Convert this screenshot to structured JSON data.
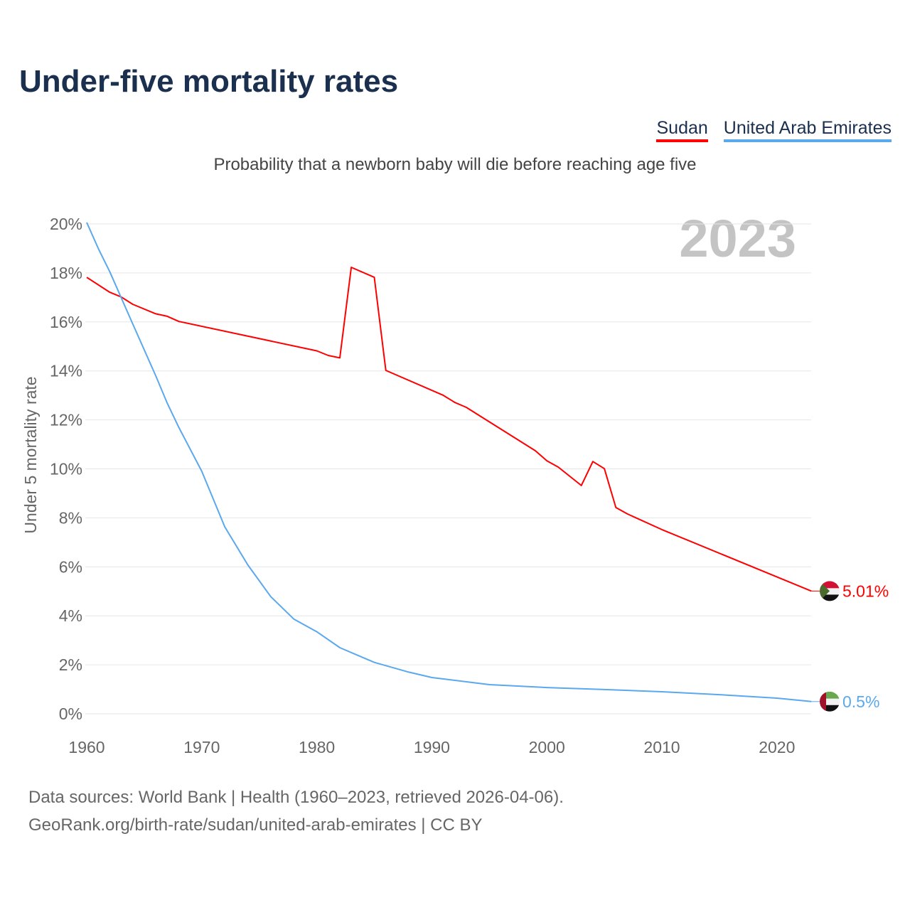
{
  "title": "Under-five mortality rates",
  "subtitle": "Probability that a newborn baby will die before reaching age five",
  "legend": [
    {
      "label": "Sudan",
      "color": "#ff0000"
    },
    {
      "label": "United Arab Emirates",
      "color": "#5aa8ee"
    }
  ],
  "footer": {
    "line1": "Data sources: World Bank | Health (1960–2023, retrieved 2026-04-06).",
    "line2": "GeoRank.org/birth-rate/sudan/united-arab-emirates | CC BY"
  },
  "chart_data": {
    "type": "line",
    "title": "Under-five mortality rates",
    "year_label": "2023",
    "ylabel": "Under 5 mortality rate",
    "xlabel": "",
    "xlim": [
      1960,
      2023
    ],
    "ylim": [
      0,
      20
    ],
    "x_ticks": [
      "1960",
      "1970",
      "1980",
      "1990",
      "2000",
      "2010",
      "2020"
    ],
    "y_ticks": [
      "0%",
      "2%",
      "4%",
      "6%",
      "8%",
      "10%",
      "12%",
      "14%",
      "16%",
      "18%",
      "20%"
    ],
    "grid": true,
    "legend_position": "top-right",
    "series": [
      {
        "name": "Sudan",
        "color": "#ff0000",
        "end_label": "5.01%",
        "icon": "sudan-flag-icon",
        "points": [
          [
            1960,
            17.82
          ],
          [
            1962,
            17.21
          ],
          [
            1963,
            17.02
          ],
          [
            1964,
            16.72
          ],
          [
            1966,
            16.33
          ],
          [
            1967,
            16.23
          ],
          [
            1968,
            16.02
          ],
          [
            1980,
            14.82
          ],
          [
            1981,
            14.63
          ],
          [
            1982,
            14.53
          ],
          [
            1983,
            18.23
          ],
          [
            1985,
            17.82
          ],
          [
            1986,
            14.02
          ],
          [
            1991,
            13.0
          ],
          [
            1992,
            12.71
          ],
          [
            1993,
            12.51
          ],
          [
            1999,
            10.74
          ],
          [
            2000,
            10.33
          ],
          [
            2001,
            10.07
          ],
          [
            2003,
            9.32
          ],
          [
            2004,
            10.3
          ],
          [
            2005,
            10.01
          ],
          [
            2006,
            8.42
          ],
          [
            2007,
            8.16
          ],
          [
            2010,
            7.52
          ],
          [
            2023,
            5.01
          ]
        ]
      },
      {
        "name": "United Arab Emirates",
        "color": "#5aa8ee",
        "end_label": "0.5%",
        "icon": "uae-flag-icon",
        "points": [
          [
            1960,
            20.06
          ],
          [
            1961,
            19.0
          ],
          [
            1962,
            18.05
          ],
          [
            1964,
            15.92
          ],
          [
            1966,
            13.8
          ],
          [
            1967,
            12.68
          ],
          [
            1968,
            11.7
          ],
          [
            1970,
            9.9
          ],
          [
            1972,
            7.63
          ],
          [
            1974,
            6.08
          ],
          [
            1976,
            4.78
          ],
          [
            1978,
            3.87
          ],
          [
            1980,
            3.35
          ],
          [
            1982,
            2.7
          ],
          [
            1984,
            2.3
          ],
          [
            1985,
            2.1
          ],
          [
            1988,
            1.7
          ],
          [
            1990,
            1.48
          ],
          [
            1995,
            1.19
          ],
          [
            2000,
            1.07
          ],
          [
            2005,
            0.99
          ],
          [
            2010,
            0.9
          ],
          [
            2015,
            0.78
          ],
          [
            2020,
            0.64
          ],
          [
            2023,
            0.5
          ]
        ]
      }
    ]
  }
}
